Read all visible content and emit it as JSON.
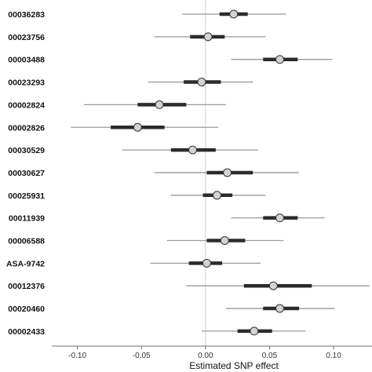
{
  "chart_data": {
    "type": "scatter",
    "subtype": "forest-plot",
    "xlabel": "Estimated SNP effect",
    "xlim": [
      -0.12,
      0.13
    ],
    "x_ticks": [
      "-0.10",
      "-0.05",
      "0.00",
      "0.05",
      "0.10"
    ],
    "reference_line_x": 0,
    "grid": false,
    "colors": {
      "thin_interval": "#9a9a9a",
      "thick_interval": "#2b2b2b",
      "point_fill": "#d3d3d3",
      "point_stroke": "#333333",
      "reference_line": "#d0d0d0"
    },
    "rows": [
      {
        "label": "00036283",
        "estimate": 0.022,
        "low95": -0.018,
        "high95": 0.063,
        "low50": 0.011,
        "high50": 0.033
      },
      {
        "label": "00023756",
        "estimate": 0.002,
        "low95": -0.04,
        "high95": 0.047,
        "low50": -0.012,
        "high50": 0.015
      },
      {
        "label": "00003488",
        "estimate": 0.058,
        "low95": 0.02,
        "high95": 0.099,
        "low50": 0.045,
        "high50": 0.072
      },
      {
        "label": "00023293",
        "estimate": -0.003,
        "low95": -0.045,
        "high95": 0.037,
        "low50": -0.017,
        "high50": 0.012
      },
      {
        "label": "00002824",
        "estimate": -0.036,
        "low95": -0.095,
        "high95": 0.016,
        "low50": -0.053,
        "high50": -0.015
      },
      {
        "label": "00002826",
        "estimate": -0.053,
        "low95": -0.105,
        "high95": 0.01,
        "low50": -0.074,
        "high50": -0.032
      },
      {
        "label": "00030529",
        "estimate": -0.01,
        "low95": -0.065,
        "high95": 0.041,
        "low50": -0.027,
        "high50": 0.008
      },
      {
        "label": "00030627",
        "estimate": 0.017,
        "low95": -0.04,
        "high95": 0.073,
        "low50": 0.001,
        "high50": 0.037
      },
      {
        "label": "00025931",
        "estimate": 0.009,
        "low95": -0.027,
        "high95": 0.047,
        "low50": -0.002,
        "high50": 0.021
      },
      {
        "label": "00011939",
        "estimate": 0.058,
        "low95": 0.02,
        "high95": 0.093,
        "low50": 0.045,
        "high50": 0.072
      },
      {
        "label": "00006588",
        "estimate": 0.015,
        "low95": -0.03,
        "high95": 0.061,
        "low50": 0.001,
        "high50": 0.031
      },
      {
        "label": "ASA-9742",
        "estimate": 0.001,
        "low95": -0.043,
        "high95": 0.043,
        "low50": -0.013,
        "high50": 0.013
      },
      {
        "label": "00012376",
        "estimate": 0.053,
        "low95": -0.015,
        "high95": 0.128,
        "low50": 0.03,
        "high50": 0.083
      },
      {
        "label": "00020460",
        "estimate": 0.058,
        "low95": 0.016,
        "high95": 0.101,
        "low50": 0.045,
        "high50": 0.073
      },
      {
        "label": "00002433",
        "estimate": 0.038,
        "low95": -0.003,
        "high95": 0.078,
        "low50": 0.025,
        "high50": 0.052
      }
    ]
  }
}
